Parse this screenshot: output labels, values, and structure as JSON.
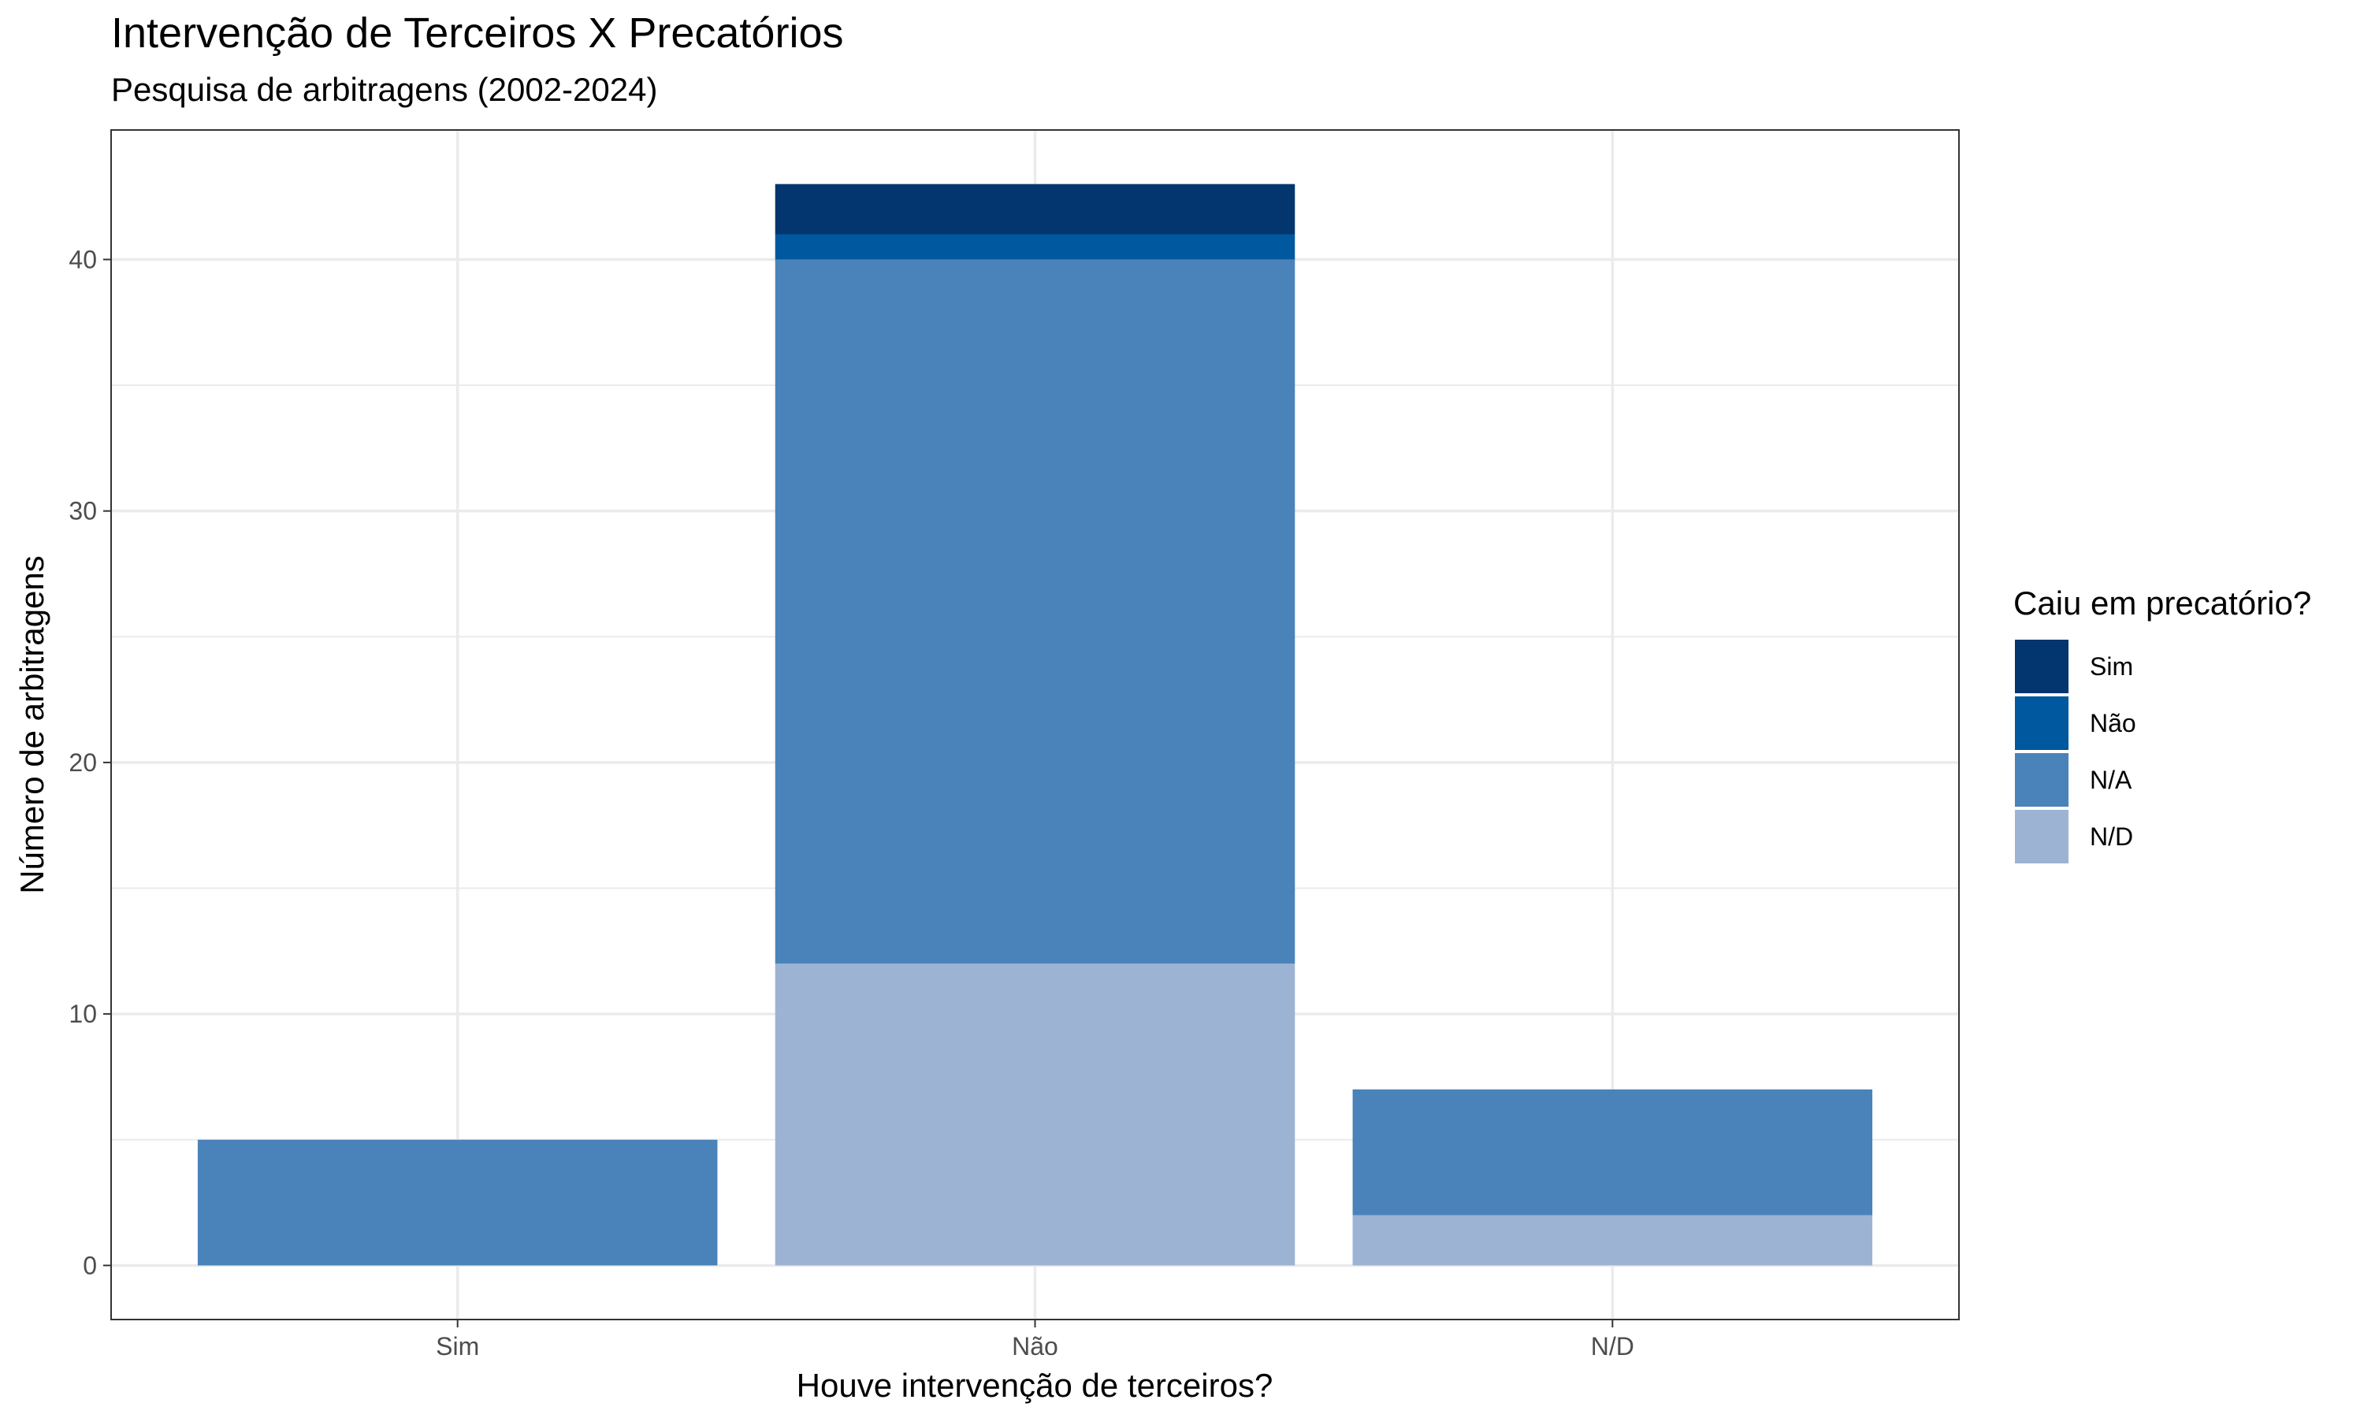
{
  "chart_data": {
    "type": "bar",
    "stacked": true,
    "title": "Intervenção de Terceiros X Precatórios",
    "subtitle": "Pesquisa de arbitragens (2002-2024)",
    "xlabel": "Houve intervenção de terceiros?",
    "ylabel": "Número de arbitragens",
    "categories": [
      "Sim",
      "Não",
      "N/D"
    ],
    "yticks": [
      0,
      10,
      20,
      30,
      40
    ],
    "ylim": [
      -2.15,
      45.15
    ],
    "grid": true,
    "legend": {
      "title": "Caiu em precatório?",
      "position": "right"
    },
    "series": [
      {
        "name": "N/D",
        "color": "#9db3d4",
        "values": [
          0,
          12,
          2
        ]
      },
      {
        "name": "N/A",
        "color": "#4a83b9",
        "values": [
          5,
          28,
          5
        ]
      },
      {
        "name": "Não",
        "color": "#00589e",
        "values": [
          0,
          1,
          0
        ]
      },
      {
        "name": "Sim",
        "color": "#03356e",
        "values": [
          0,
          2,
          0
        ]
      }
    ],
    "legend_order": [
      "Sim",
      "Não",
      "N/A",
      "N/D"
    ]
  }
}
